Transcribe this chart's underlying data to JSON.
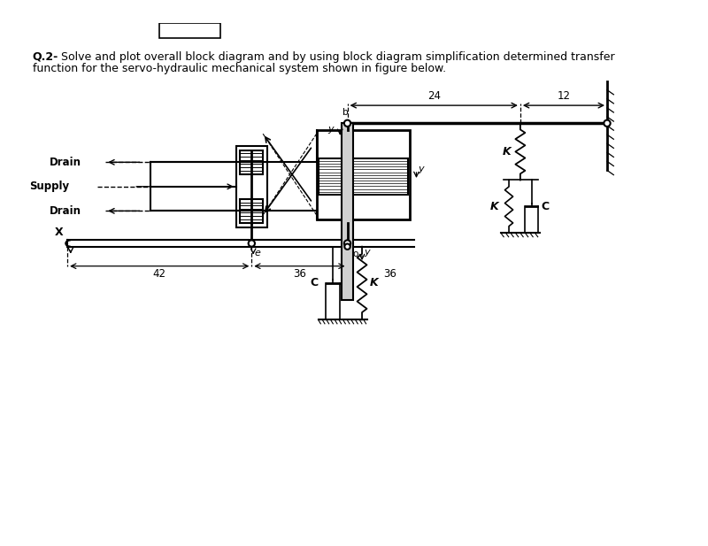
{
  "title_bold": "Q.2-",
  "title_rest": " Solve and plot overall block diagram and by using block diagram simplification determined transfer",
  "title_line2": "function for the servo-hydraulic mechanical system shown in figure below.",
  "bg_color": "#ffffff",
  "dim_24": "24",
  "dim_12": "12",
  "dim_42": "42",
  "dim_36": "36",
  "label_drain1": "Drain",
  "label_supply": "Supply",
  "label_drain2": "Drain",
  "label_K": "K",
  "label_C": "C",
  "label_y": "y",
  "label_x": "X",
  "label_e": "e",
  "label_b": "b",
  "label_o": "o"
}
